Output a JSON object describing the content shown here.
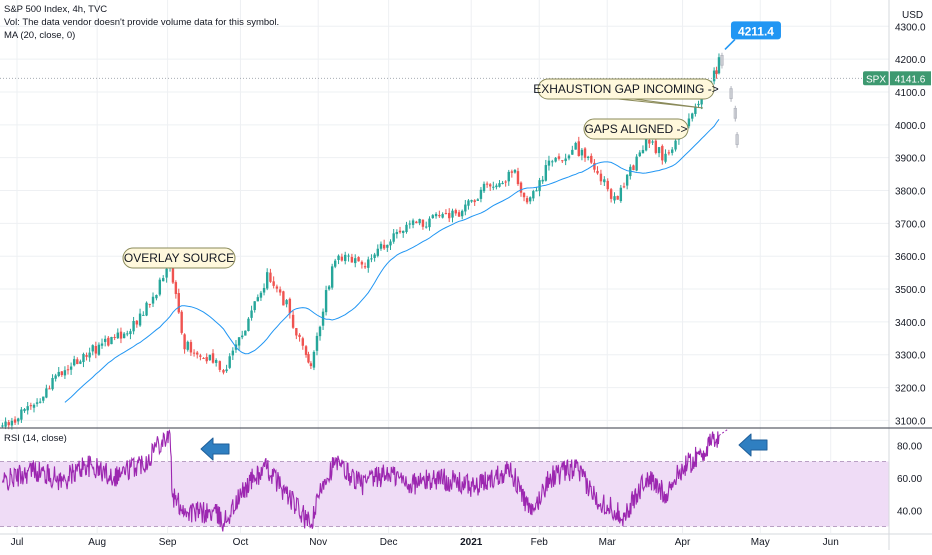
{
  "header": {
    "title": "S&P 500 Index, 4h, TVC",
    "vol_note": "Vol: The data vendor doesn't provide volume data for this symbol.",
    "ma_label": "MA (20, close, 0)",
    "rsi_label": "RSI (14, close)",
    "currency": "USD"
  },
  "colors": {
    "up": "#26a69a",
    "down": "#ef5350",
    "ma_line": "#2196f3",
    "rsi_line": "#9c27b0",
    "rsi_band": "#efdcf6",
    "callout_bg": "#fff8dc",
    "callout_border": "#8a8a5a",
    "price_label_blue": "#2196f3",
    "spx_badge": "#3d9970",
    "arrow_blue": "#2f7fc1"
  },
  "chart_data": [
    {
      "type": "candlestick",
      "title": "S&P 500 Index, 4h, TVC",
      "ylim": [
        3080,
        4380
      ],
      "y_ticks": [
        3100,
        3200,
        3300,
        3400,
        3500,
        3600,
        3700,
        3800,
        3900,
        4000,
        4100,
        4200,
        4300
      ],
      "y_tick_labels": [
        "3100.0",
        "3200.0",
        "3300.0",
        "3400.0",
        "3500.0",
        "3600.0",
        "3700.0",
        "3800.0",
        "3900.0",
        "4000.0",
        "4100.0",
        "4200.0",
        "4300.0"
      ],
      "x_labels": [
        "Jul",
        "Aug",
        "Sep",
        "Oct",
        "Nov",
        "Dec",
        "2021",
        "Feb",
        "Mar",
        "Apr",
        "May",
        "Jun"
      ],
      "x_label_dates": [
        "2020-07-01",
        "2020-08-03",
        "2020-09-01",
        "2020-10-01",
        "2020-11-02",
        "2020-12-01",
        "2021-01-04",
        "2021-02-01",
        "2021-03-01",
        "2021-04-01",
        "2021-05-03",
        "2021-06-01"
      ],
      "close_path": [
        [
          "2020-06-25",
          3080
        ],
        [
          "2020-07-08",
          3150
        ],
        [
          "2020-07-22",
          3270
        ],
        [
          "2020-08-05",
          3330
        ],
        [
          "2020-08-18",
          3390
        ],
        [
          "2020-08-26",
          3470
        ],
        [
          "2020-09-02",
          3580
        ],
        [
          "2020-09-08",
          3330
        ],
        [
          "2020-09-21",
          3280
        ],
        [
          "2020-09-24",
          3240
        ],
        [
          "2020-10-12",
          3540
        ],
        [
          "2020-10-20",
          3450
        ],
        [
          "2020-10-28",
          3290
        ],
        [
          "2020-10-30",
          3250
        ],
        [
          "2020-11-04",
          3440
        ],
        [
          "2020-11-09",
          3600
        ],
        [
          "2020-11-20",
          3570
        ],
        [
          "2020-12-07",
          3690
        ],
        [
          "2020-12-30",
          3730
        ],
        [
          "2021-01-08",
          3800
        ],
        [
          "2021-01-22",
          3850
        ],
        [
          "2021-01-27",
          3760
        ],
        [
          "2021-02-05",
          3880
        ],
        [
          "2021-02-16",
          3930
        ],
        [
          "2021-02-25",
          3860
        ],
        [
          "2021-03-04",
          3770
        ],
        [
          "2021-03-17",
          3950
        ],
        [
          "2021-03-25",
          3900
        ],
        [
          "2021-04-05",
          4050
        ],
        [
          "2021-04-14",
          4150
        ],
        [
          "2021-04-16",
          4190
        ]
      ],
      "ma": {
        "name": "MA (20, close, 0)",
        "period": 20
      },
      "last_bars": [
        [
          "2021-04-16",
          4211.4
        ],
        [
          "2021-04-19",
          4110
        ],
        [
          "2021-04-20",
          4050
        ],
        [
          "2021-04-20",
          3970
        ]
      ],
      "annotations": {
        "callouts": [
          {
            "text": "OVERLAY SOURCE",
            "anchor": [
              "2020-09-02",
              3580
            ]
          },
          {
            "text": "EXHAUSTION GAP INCOMING ->",
            "anchor": [
              "2021-04-13",
              4130
            ]
          },
          {
            "text": "GAPS ALIGNED ->",
            "anchor": [
              "2021-04-05",
              4050
            ]
          }
        ],
        "price_callout": {
          "text": "4211.4",
          "date": "2021-04-16",
          "value": 4211.4
        },
        "current_price": {
          "symbol": "SPX",
          "value": 4141.6,
          "label": "4141.6"
        }
      }
    },
    {
      "type": "line",
      "title": "RSI (14, close)",
      "ylim": [
        26,
        90
      ],
      "y_ticks": [
        40,
        60,
        80
      ],
      "y_tick_labels": [
        "40.00",
        "60.00",
        "80.00"
      ],
      "band": [
        30,
        70
      ],
      "series": [
        {
          "name": "RSI (14, close)",
          "points": [
            [
              "2020-06-25",
              57
            ],
            [
              "2020-07-08",
              65
            ],
            [
              "2020-07-20",
              58
            ],
            [
              "2020-07-29",
              68
            ],
            [
              "2020-08-10",
              61
            ],
            [
              "2020-08-24",
              71
            ],
            [
              "2020-08-27",
              80
            ],
            [
              "2020-09-02",
              87
            ],
            [
              "2020-09-03",
              48
            ],
            [
              "2020-09-09",
              39
            ],
            [
              "2020-09-21",
              38
            ],
            [
              "2020-09-24",
              32
            ],
            [
              "2020-10-05",
              58
            ],
            [
              "2020-10-12",
              66
            ],
            [
              "2020-10-20",
              50
            ],
            [
              "2020-10-28",
              34
            ],
            [
              "2020-10-30",
              30
            ],
            [
              "2020-11-04",
              58
            ],
            [
              "2020-11-09",
              69
            ],
            [
              "2020-11-20",
              56
            ],
            [
              "2020-12-01",
              63
            ],
            [
              "2020-12-10",
              56
            ],
            [
              "2020-12-22",
              60
            ],
            [
              "2021-01-06",
              54
            ],
            [
              "2021-01-20",
              66
            ],
            [
              "2021-01-27",
              43
            ],
            [
              "2021-01-29",
              37
            ],
            [
              "2021-02-05",
              60
            ],
            [
              "2021-02-16",
              66
            ],
            [
              "2021-02-24",
              48
            ],
            [
              "2021-03-04",
              40
            ],
            [
              "2021-03-08",
              36
            ],
            [
              "2021-03-17",
              60
            ],
            [
              "2021-03-25",
              50
            ],
            [
              "2021-04-01",
              66
            ],
            [
              "2021-04-08",
              74
            ],
            [
              "2021-04-15",
              84
            ],
            [
              "2021-04-16",
              86
            ]
          ]
        }
      ],
      "annotations": [
        "left-arrow at RSI peak (Sep)",
        "left-arrow at current RSI (Apr)"
      ]
    }
  ]
}
